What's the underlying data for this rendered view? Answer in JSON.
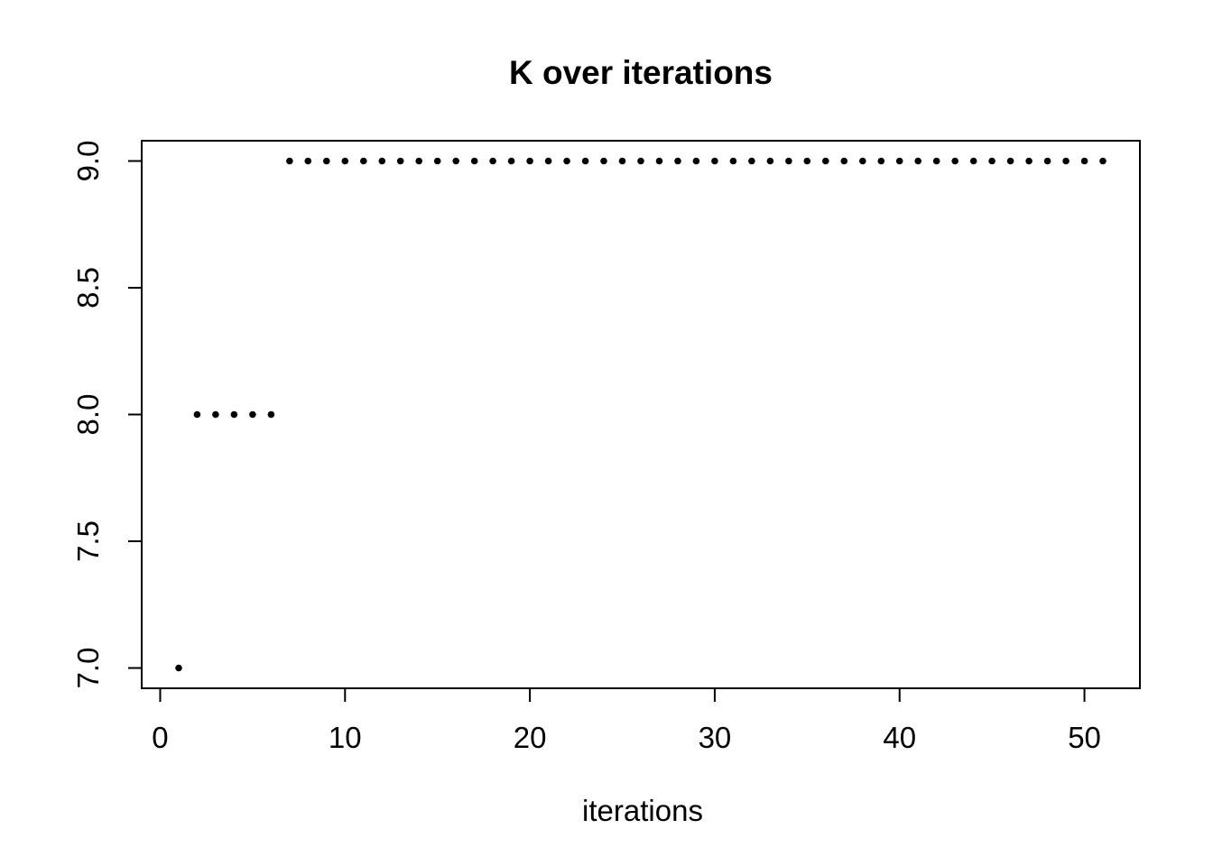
{
  "title": "K over iterations",
  "xlabel": "iterations",
  "colors": {
    "foreground": "#000000",
    "background": "#ffffff",
    "point": "#000000"
  },
  "chart_data": {
    "type": "scatter",
    "title": "K over iterations",
    "xlabel": "iterations",
    "ylabel": "",
    "marker": "filled-circle",
    "grid": false,
    "legend": null,
    "xlim": [
      -1.0,
      53.0
    ],
    "ylim": [
      6.92,
      9.08
    ],
    "xticks": {
      "values": [
        0,
        10,
        20,
        30,
        40,
        50
      ],
      "labels": [
        "0",
        "10",
        "20",
        "30",
        "40",
        "50"
      ]
    },
    "yticks": {
      "values": [
        7.0,
        7.5,
        8.0,
        8.5,
        9.0
      ],
      "labels": [
        "7.0",
        "7.5",
        "8.0",
        "8.5",
        "9.0"
      ]
    },
    "x": [
      1,
      2,
      3,
      4,
      5,
      6,
      7,
      8,
      9,
      10,
      11,
      12,
      13,
      14,
      15,
      16,
      17,
      18,
      19,
      20,
      21,
      22,
      23,
      24,
      25,
      26,
      27,
      28,
      29,
      30,
      31,
      32,
      33,
      34,
      35,
      36,
      37,
      38,
      39,
      40,
      41,
      42,
      43,
      44,
      45,
      46,
      47,
      48,
      49,
      50,
      51
    ],
    "y": [
      7,
      8,
      8,
      8,
      8,
      8,
      9,
      9,
      9,
      9,
      9,
      9,
      9,
      9,
      9,
      9,
      9,
      9,
      9,
      9,
      9,
      9,
      9,
      9,
      9,
      9,
      9,
      9,
      9,
      9,
      9,
      9,
      9,
      9,
      9,
      9,
      9,
      9,
      9,
      9,
      9,
      9,
      9,
      9,
      9,
      9,
      9,
      9,
      9,
      9,
      9
    ]
  }
}
